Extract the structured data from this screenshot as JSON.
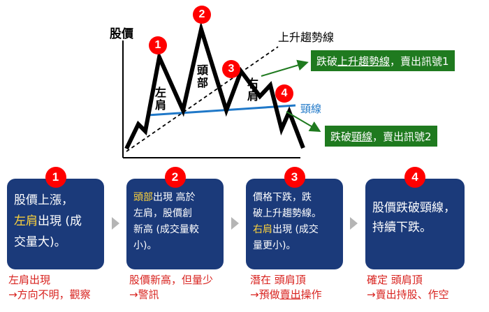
{
  "chart": {
    "y_axis_label": "股價",
    "trend_line_label": "上升趨勢線",
    "neckline_label": "頸線",
    "left_shoulder": [
      "左",
      "肩"
    ],
    "head": [
      "頭",
      "部"
    ],
    "right_shoulder": [
      "右",
      "肩"
    ],
    "badges": [
      "1",
      "2",
      "3",
      "4"
    ],
    "colors": {
      "price_line": "#000000",
      "trend": "#000000",
      "neckline": "#1f78c8",
      "badge": "#ff0000",
      "signal": "#1f7a1f"
    }
  },
  "signals": [
    {
      "pre": "跌破",
      "em": "上升趨勢線",
      "post": "，賣出訊號1"
    },
    {
      "pre": "跌破",
      "em": "頸線",
      "post": "，賣出訊號2"
    }
  ],
  "steps": [
    {
      "number": "1",
      "line1": "股價上漲，",
      "hl": "左肩",
      "line2": "出現 (成",
      "line3": "交量大)。",
      "caption1": "左肩出現",
      "caption2": "→方向不明，觀察"
    },
    {
      "number": "2",
      "hl": "頭部",
      "line1": "出現 高於",
      "line2": "左肩，股價創",
      "line3": "新高 (成交量較",
      "line4": "小)。",
      "caption1": "股價新高，但量少",
      "caption2": "→警訊"
    },
    {
      "number": "3",
      "line1": "價格下跌，跌",
      "line2": "破上升趨勢線。",
      "hl": "右肩",
      "line3": "出現 (成交",
      "line4": "量更小)。",
      "caption1": "潛在 頭肩頂",
      "caption2_pre": "→預做",
      "caption2_em": "賣出",
      "caption2_post": "操作"
    },
    {
      "number": "4",
      "line1": "股價跌破頸線，",
      "line2": "持續下跌。",
      "caption1": "確定 頭肩頂",
      "caption2": "→賣出持股、作空"
    }
  ]
}
